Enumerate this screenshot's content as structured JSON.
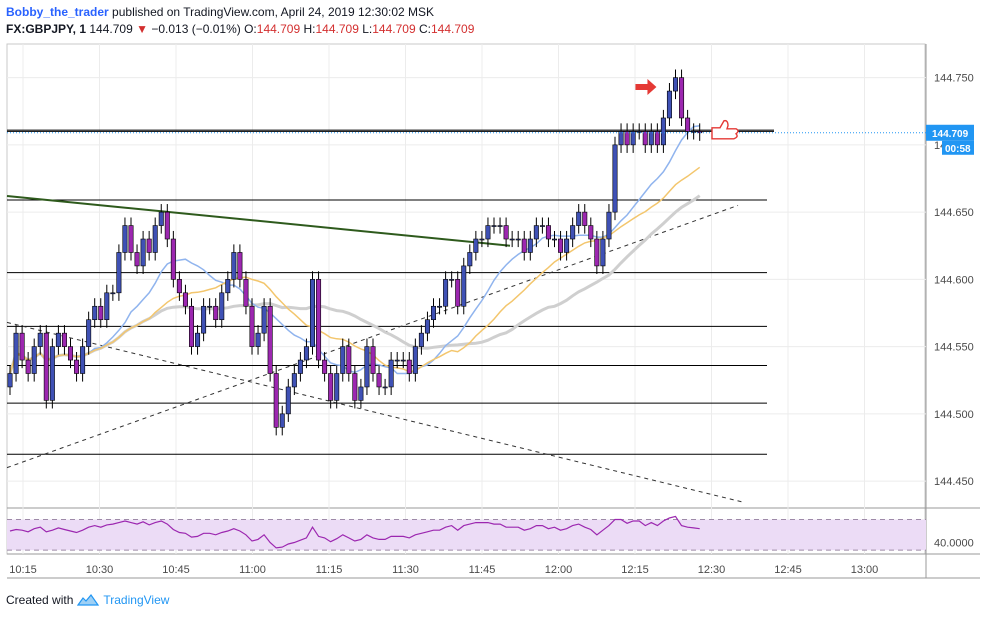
{
  "header": {
    "author": "Bobby_the_trader",
    "published": "published on TradingView.com, April 24, 2019 12:30:02 MSK",
    "symbol": "FX:GBPJPY, 1",
    "last": "144.709",
    "change_icon": "triangle-down-icon",
    "change": "−0.013 (−0.01%)",
    "o_label": "O:",
    "o": "144.709",
    "h_label": "H:",
    "h": "144.709",
    "l_label": "L:",
    "l": "144.709",
    "c_label": "C:",
    "c": "144.709"
  },
  "footer": {
    "created_with": "Created with",
    "brand": "TradingView",
    "logo_icon": "tradingview-logo-icon"
  },
  "price_tag": {
    "value": "144.709",
    "countdown": "00:58",
    "color": "#2196f3"
  },
  "colors": {
    "up_candle": "#3f51b5",
    "down_candle": "#9c27b0",
    "ma_gray": "#cfcfcf",
    "ma_blue": "#90b4ee",
    "ma_yellow": "#f3c66d",
    "trendline_green": "#2e5a1c",
    "rsi_band": "#ecdcf6",
    "rsi_line": "#9c27b0",
    "annotation_red": "#e53935"
  },
  "chart_data": {
    "type": "candlestick",
    "symbol": "GBPJPY",
    "interval": "1",
    "x_ticks": [
      "10:15",
      "10:30",
      "10:45",
      "11:00",
      "11:15",
      "11:30",
      "11:45",
      "12:00",
      "12:15",
      "12:30",
      "12:45",
      "13:00"
    ],
    "y_ticks": [
      "144.750",
      "144.700",
      "144.650",
      "144.600",
      "144.550",
      "144.500",
      "144.450"
    ],
    "ylim": [
      144.43,
      144.775
    ],
    "last_price": 144.709,
    "horizontal_levels": [
      144.711,
      144.659,
      144.605,
      144.565,
      144.536,
      144.508,
      144.47
    ],
    "close": [
      144.53,
      144.56,
      144.54,
      144.53,
      144.55,
      144.56,
      144.51,
      144.55,
      144.56,
      144.55,
      144.54,
      144.53,
      144.55,
      144.57,
      144.58,
      144.57,
      144.59,
      144.59,
      144.62,
      144.64,
      144.62,
      144.61,
      144.63,
      144.62,
      144.64,
      144.65,
      144.63,
      144.6,
      144.59,
      144.58,
      144.55,
      144.56,
      144.58,
      144.58,
      144.57,
      144.59,
      144.6,
      144.62,
      144.6,
      144.58,
      144.55,
      144.56,
      144.58,
      144.53,
      144.49,
      144.5,
      144.52,
      144.53,
      144.54,
      144.55,
      144.6,
      144.54,
      144.53,
      144.51,
      144.53,
      144.55,
      144.53,
      144.51,
      144.52,
      144.55,
      144.53,
      144.52,
      144.52,
      144.54,
      144.54,
      144.54,
      144.53,
      144.55,
      144.56,
      144.57,
      144.58,
      144.58,
      144.6,
      144.6,
      144.58,
      144.61,
      144.62,
      144.63,
      144.63,
      144.64,
      144.64,
      144.64,
      144.63,
      144.63,
      144.63,
      144.62,
      144.63,
      144.64,
      144.64,
      144.63,
      144.63,
      144.62,
      144.63,
      144.64,
      144.65,
      144.64,
      144.63,
      144.61,
      144.63,
      144.65,
      144.7,
      144.71,
      144.7,
      144.71,
      144.71,
      144.7,
      144.71,
      144.7,
      144.72,
      144.74,
      144.75,
      144.72,
      144.71,
      144.71,
      144.709
    ],
    "rsi": {
      "label": "40.0000",
      "reference_level": 40,
      "bands": [
        30,
        70
      ],
      "values": [
        55,
        57,
        56,
        54,
        58,
        60,
        54,
        56,
        59,
        57,
        55,
        53,
        56,
        60,
        62,
        60,
        63,
        64,
        66,
        68,
        66,
        64,
        67,
        63,
        66,
        68,
        64,
        57,
        53,
        52,
        47,
        48,
        52,
        52,
        50,
        53,
        55,
        58,
        55,
        50,
        42,
        44,
        50,
        40,
        33,
        34,
        38,
        40,
        43,
        46,
        60,
        48,
        46,
        41,
        45,
        50,
        46,
        42,
        44,
        50,
        46,
        44,
        44,
        48,
        48,
        48,
        46,
        50,
        52,
        54,
        56,
        56,
        60,
        62,
        56,
        62,
        64,
        66,
        66,
        66,
        64,
        64,
        60,
        60,
        60,
        56,
        58,
        62,
        62,
        58,
        60,
        56,
        58,
        62,
        64,
        60,
        57,
        50,
        56,
        62,
        70,
        70,
        65,
        68,
        68,
        62,
        66,
        62,
        68,
        72,
        74,
        62,
        60,
        59,
        58
      ]
    }
  }
}
